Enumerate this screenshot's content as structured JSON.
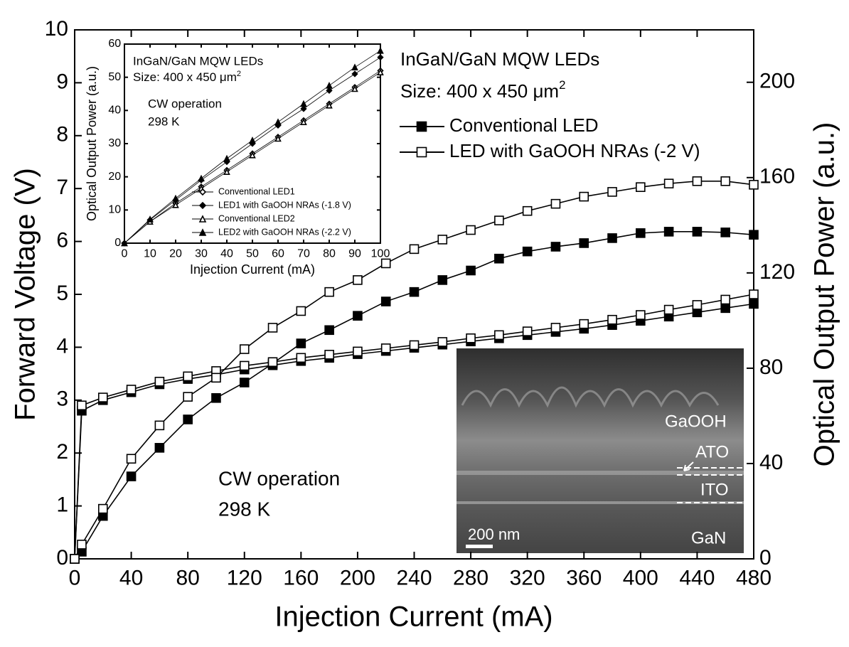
{
  "chart_data": [
    {
      "type": "line",
      "xlabel": "Injection Current (mA)",
      "ylabel": "Forward Voltage (V)",
      "y2label": "Optical Output Power (a.u.)",
      "annotations": [
        "InGaN/GaN MQW LEDs",
        {
          "text": "Size: 400 x 450 μm",
          "sup": "2"
        },
        "CW operation",
        "298 K"
      ],
      "xlim": [
        0,
        480
      ],
      "xticks": [
        0,
        40,
        80,
        120,
        160,
        200,
        240,
        280,
        320,
        360,
        400,
        440,
        480
      ],
      "ylim": [
        0,
        10
      ],
      "yticks": [
        0,
        1,
        2,
        3,
        4,
        5,
        6,
        7,
        8,
        9,
        10
      ],
      "y2lim": [
        0,
        222
      ],
      "y2ticks": [
        0,
        40,
        80,
        120,
        160,
        200
      ],
      "x": [
        0,
        5,
        20,
        40,
        60,
        80,
        100,
        120,
        140,
        160,
        180,
        200,
        220,
        240,
        260,
        280,
        300,
        320,
        340,
        360,
        380,
        400,
        420,
        440,
        460,
        480
      ],
      "series": [
        {
          "name": "Conventional LED",
          "color": "#000000",
          "marker": "square",
          "filled": true,
          "values": [
            0,
            2.8,
            3.0,
            3.15,
            3.3,
            3.4,
            3.48,
            3.58,
            3.66,
            3.74,
            3.8,
            3.87,
            3.93,
            3.99,
            4.05,
            4.11,
            4.17,
            4.23,
            4.29,
            4.35,
            4.42,
            4.5,
            4.58,
            4.66,
            4.74,
            4.82
          ],
          "y2_values": [
            0,
            3,
            18,
            34.6,
            46.6,
            58.5,
            67.5,
            74,
            82,
            90.4,
            96,
            102,
            108,
            112,
            117,
            121,
            126,
            129,
            131,
            132.5,
            134.6,
            136.7,
            137.3,
            137.3,
            137,
            136
          ]
        },
        {
          "name": "LED with GaOOH NRAs (-2 V)",
          "color": "#000000",
          "marker": "square",
          "filled": false,
          "values": [
            0,
            2.9,
            3.05,
            3.2,
            3.35,
            3.45,
            3.55,
            3.65,
            3.72,
            3.8,
            3.86,
            3.92,
            3.98,
            4.04,
            4.1,
            4.17,
            4.23,
            4.3,
            4.37,
            4.44,
            4.52,
            4.61,
            4.71,
            4.8,
            4.9,
            5.0
          ],
          "y2_values": [
            0,
            6,
            21,
            42,
            56,
            68,
            76,
            88,
            97,
            104,
            112,
            117,
            124,
            130,
            134,
            138,
            142,
            146,
            149,
            152,
            154,
            156,
            157.5,
            158.5,
            158.5,
            157
          ]
        }
      ],
      "sem_image": {
        "labels": [
          "GaOOH",
          "ATO",
          "ITO",
          "GaN"
        ],
        "scale_bar": "200 nm"
      }
    },
    {
      "type": "line",
      "xlabel": "Injection Current (mA)",
      "ylabel": "Optical Output Power (a.u.)",
      "annotations": [
        "InGaN/GaN MQW LEDs",
        {
          "text": "Size: 400 x 450 μm",
          "sup": "2"
        },
        "CW operation",
        "298 K"
      ],
      "xlim": [
        0,
        100
      ],
      "xticks": [
        0,
        10,
        20,
        30,
        40,
        50,
        60,
        70,
        80,
        90,
        100
      ],
      "ylim": [
        0,
        60
      ],
      "yticks": [
        0,
        10,
        20,
        30,
        40,
        50,
        60
      ],
      "x": [
        0,
        10,
        20,
        30,
        40,
        50,
        60,
        70,
        80,
        90,
        100
      ],
      "series": [
        {
          "name": "Conventional LED1",
          "color": "#000000",
          "marker": "diamond",
          "filled": false,
          "values": [
            0,
            6.5,
            12,
            17,
            22,
            27,
            32,
            37,
            42,
            47,
            52
          ]
        },
        {
          "name": "LED1 with GaOOH NRAs (-1.8 V)",
          "color": "#000000",
          "marker": "diamond",
          "filled": true,
          "values": [
            0,
            7,
            13,
            19,
            24.5,
            30,
            35.5,
            40.5,
            46,
            51,
            56
          ]
        },
        {
          "name": "Conventional LED2",
          "color": "#000000",
          "marker": "triangle",
          "filled": false,
          "values": [
            0,
            6.5,
            11.5,
            16.5,
            21.5,
            26.5,
            31.5,
            36.5,
            41.5,
            46.5,
            51.5
          ]
        },
        {
          "name": "LED2 with GaOOH NRAs (-2.2 V)",
          "color": "#000000",
          "marker": "triangle",
          "filled": true,
          "values": [
            0,
            7.2,
            13.5,
            19.5,
            25.5,
            31,
            36.5,
            42,
            47.5,
            53,
            58
          ]
        }
      ]
    }
  ]
}
